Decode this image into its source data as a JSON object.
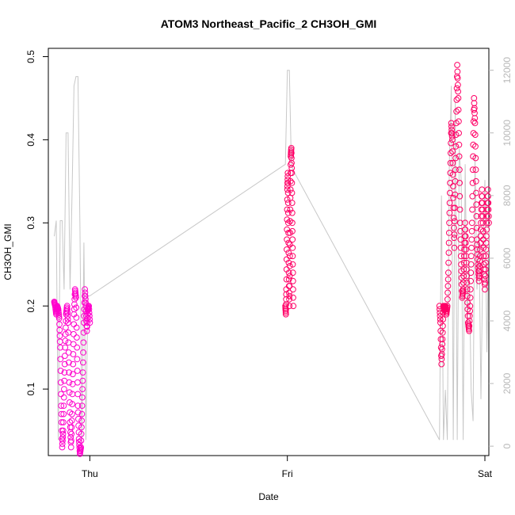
{
  "chart_data": {
    "type": "scatter",
    "title": "ATOM3 Northeast_Pacific_2 CH3OH_GMI",
    "xlabel": "Date",
    "ylabel": "CH3OH_GMI",
    "x_ticks": [
      "Thu",
      "Fri",
      "Sat"
    ],
    "y_ticks": [
      "0.1",
      "0.2",
      "0.3",
      "0.4",
      "0.5"
    ],
    "y_ticks_values": [
      0.1,
      0.2,
      0.3,
      0.4,
      0.5
    ],
    "ylim": [
      0.02,
      0.51
    ],
    "y2_ticks": [
      "0",
      "2000",
      "4000",
      "6000",
      "8000",
      "10000",
      "12000"
    ],
    "y2_ticks_values": [
      0,
      2000,
      4000,
      6000,
      8000,
      10000,
      12000
    ],
    "y2lim": [
      -300,
      12700
    ],
    "xlim": [
      -0.21,
      2.02
    ],
    "colors": {
      "marker_early": "#ff00cc",
      "marker_late": "#ff0066",
      "altitude_line": "#c8c8c8"
    },
    "series": [
      {
        "kind": "points",
        "segments": [
          {
            "x_start": -0.18,
            "x_end": 0.0,
            "values": [
              0.205,
              0.2,
              0.19,
              0.2,
              0.196,
              0.185,
              0.15,
              0.08,
              0.03,
              0.05,
              0.1,
              0.15,
              0.19,
              0.2,
              0.18,
              0.12,
              0.06,
              0.03,
              0.07,
              0.13,
              0.19,
              0.22,
              0.21,
              0.15,
              0.08,
              0.04,
              0.022,
              0.03,
              0.07,
              0.12,
              0.18,
              0.22,
              0.2,
              0.17,
              0.195,
              0.2,
              0.18
            ]
          },
          {
            "x_start": 0.99,
            "x_end": 1.03,
            "values": [
              0.2,
              0.19,
              0.22,
              0.28,
              0.34,
              0.36,
              0.3,
              0.24,
              0.2,
              0.26,
              0.33,
              0.38,
              0.39,
              0.36,
              0.3,
              0.25,
              0.2
            ]
          },
          {
            "x_start": 1.77,
            "x_end": 2.02,
            "values": [
              0.2,
              0.18,
              0.13,
              0.16,
              0.2,
              0.195,
              0.2,
              0.19,
              0.2,
              0.24,
              0.3,
              0.36,
              0.42,
              0.4,
              0.33,
              0.27,
              0.35,
              0.42,
              0.49,
              0.45,
              0.38,
              0.3,
              0.25,
              0.21,
              0.22,
              0.26,
              0.3,
              0.26,
              0.22,
              0.18,
              0.17,
              0.2,
              0.25,
              0.3,
              0.38,
              0.45,
              0.42,
              0.35,
              0.28,
              0.25,
              0.23,
              0.26,
              0.3,
              0.34,
              0.3,
              0.25,
              0.22,
              0.26,
              0.3,
              0.34,
              0.3
            ]
          }
        ]
      },
      {
        "kind": "altitude-line",
        "axis": "right",
        "x": [
          -0.18,
          -0.17,
          -0.16,
          -0.15,
          -0.14,
          -0.13,
          -0.12,
          -0.11,
          -0.1,
          -0.09,
          -0.08,
          -0.07,
          -0.06,
          -0.05,
          -0.04,
          -0.03,
          -0.02,
          -0.01,
          0.0,
          0.99,
          1.0,
          1.01,
          1.02,
          1.03,
          1.77,
          1.78,
          1.79,
          1.8,
          1.81,
          1.82,
          1.83,
          1.84,
          1.85,
          1.86,
          1.87,
          1.88,
          1.89,
          1.9,
          1.91,
          1.92,
          1.93,
          1.94,
          1.95,
          1.96,
          1.97,
          1.98,
          1.99,
          2.0,
          2.01,
          2.02
        ],
        "values": [
          6700,
          7200,
          200,
          7200,
          7200,
          5000,
          10000,
          10000,
          5000,
          8000,
          11500,
          11800,
          11800,
          7000,
          200,
          6500,
          200,
          4800,
          4800,
          9000,
          12000,
          12000,
          9000,
          8800,
          200,
          8000,
          200,
          1800,
          200,
          9000,
          11500,
          200,
          11000,
          200,
          9500,
          8500,
          200,
          9000,
          4000,
          6000,
          1800,
          800,
          9300,
          5000,
          7000,
          1500,
          6000,
          8500,
          3000,
          7000
        ]
      }
    ]
  }
}
